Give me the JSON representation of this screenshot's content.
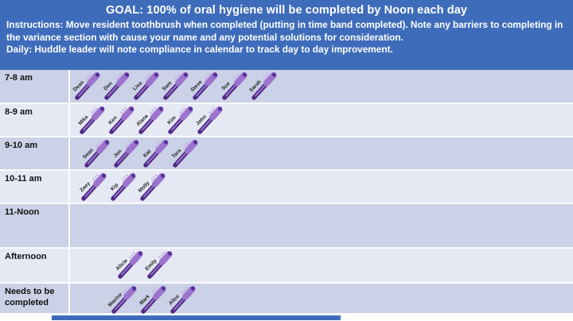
{
  "header": {
    "goal": "GOAL:  100% of oral hygiene will be completed by Noon each day",
    "instructions": "Instructions: Move resident toothbrush when completed (putting in time band completed). Note any barriers to completing in the variance section with cause your name and any potential solutions for consideration.",
    "daily": "Daily: Huddle leader will note compliance in calendar to track day to day improvement."
  },
  "colors": {
    "header_bg": "#3e6cbb",
    "row_dark": "#cbd1e6",
    "row_light": "#e6e9f4",
    "brush_handle": "#4f2b86",
    "brush_head": "#9c74ce",
    "brush_bristles": "#c7b2e6"
  },
  "schedule": {
    "rows": [
      {
        "label": "7-8 am",
        "names": [
          "Dean",
          "Don",
          "Lisa",
          "Sam",
          "Steve",
          "Sue",
          "Sarah"
        ]
      },
      {
        "label": "8-9 am",
        "names": [
          "Mike",
          "Ken",
          "Alana",
          "Kim",
          "John"
        ]
      },
      {
        "label": "9-10 am",
        "names": [
          "Sean",
          "Jon",
          "Kat",
          "Tara"
        ]
      },
      {
        "label": "10-11 am",
        "names": [
          "Zoey",
          "Kip",
          "Molly"
        ]
      },
      {
        "label": "11-Noon",
        "names": []
      },
      {
        "label": "Afternoon",
        "names": [
          "Alicia",
          "Emily"
        ]
      },
      {
        "label": "Needs to be completed",
        "names": [
          "Maxine",
          "Mark",
          "Alice"
        ]
      }
    ]
  }
}
